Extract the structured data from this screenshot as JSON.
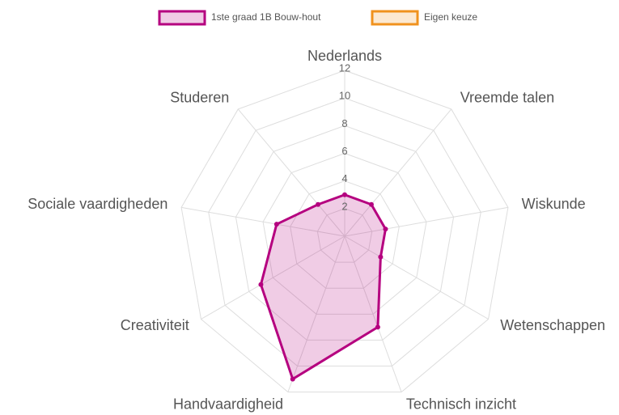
{
  "chart_data": {
    "type": "radar",
    "categories": [
      "Nederlands",
      "Vreemde talen",
      "Wiskunde",
      "Wetenschappen",
      "Technisch inzicht",
      "Handvaardigheid",
      "Creativiteit",
      "Sociale vaardigheden",
      "Studeren"
    ],
    "series": [
      {
        "name": "1ste graad 1B Bouw-hout",
        "color": "#b5007f",
        "fill": "rgba(181,0,127,0.2)",
        "values": [
          3,
          3,
          3,
          3,
          7,
          11,
          7,
          5,
          3
        ]
      },
      {
        "name": "Eigen keuze",
        "color": "#f0921e",
        "fill": "rgba(240,146,30,0.2)",
        "values": [
          null,
          null,
          null,
          null,
          null,
          null,
          null,
          null,
          null
        ]
      }
    ],
    "ylim": [
      0,
      12
    ],
    "yticks": [
      2,
      4,
      6,
      8,
      10,
      12
    ],
    "grid": true,
    "legend": "top"
  }
}
